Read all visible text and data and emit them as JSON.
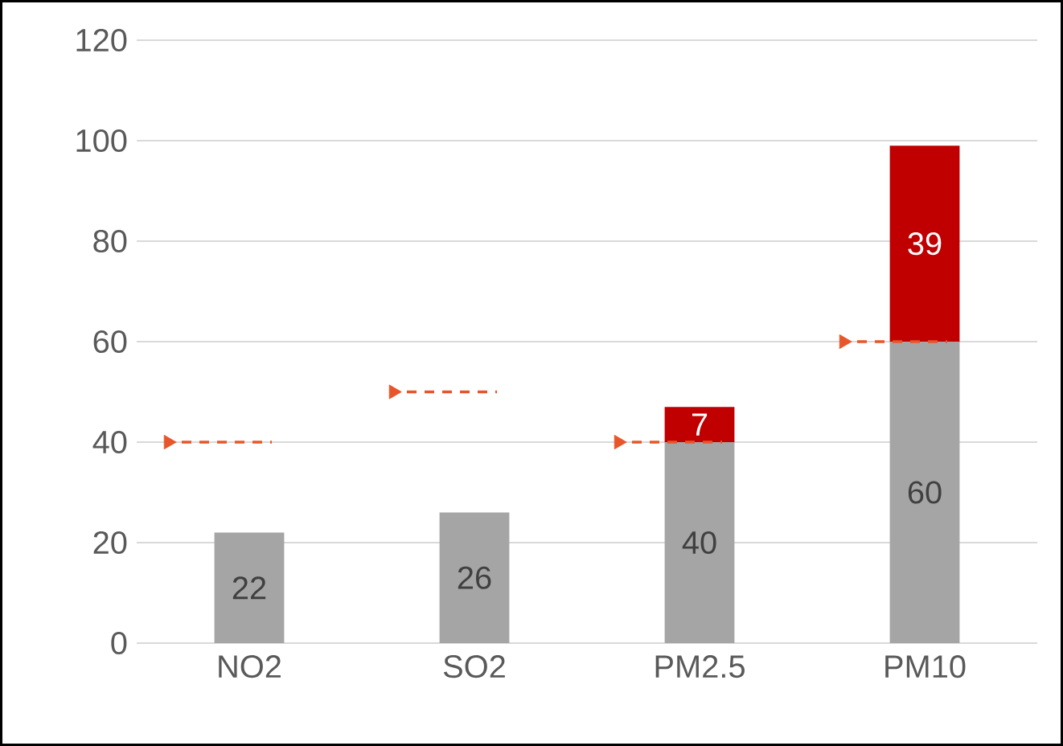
{
  "chart_data": {
    "type": "bar",
    "stacked": true,
    "categories": [
      "NO2",
      "SO2",
      "PM2.5",
      "PM10"
    ],
    "series": [
      {
        "color": "#a5a5a5",
        "values": [
          22,
          26,
          40,
          60
        ],
        "value_labels": [
          "22",
          "26",
          "40",
          "60"
        ]
      },
      {
        "color": "#c00000",
        "values": [
          null,
          null,
          7,
          39
        ],
        "value_labels": [
          null,
          null,
          "7",
          "39"
        ]
      },
      {
        "type": "scatter",
        "x": [
          "NO2",
          "SO2",
          "PM2.5",
          "PM10"
        ],
        "values": [
          40,
          50,
          40,
          60
        ],
        "color": "#e8552a",
        "marker": "triangle"
      }
    ],
    "ref_lines": [
      {
        "axis": "y",
        "value": 40,
        "color": "#e8552a",
        "line_style": "dashed"
      },
      {
        "axis": "y",
        "value": 50,
        "color": "#e8552a",
        "line_style": "dashed"
      },
      {
        "axis": "y",
        "value": 60,
        "color": "#e8552a",
        "line_style": "dashed"
      }
    ],
    "ylim": [
      0,
      120
    ],
    "yticks": [
      0,
      20,
      40,
      60,
      80,
      100,
      120
    ],
    "grid": "y"
  }
}
